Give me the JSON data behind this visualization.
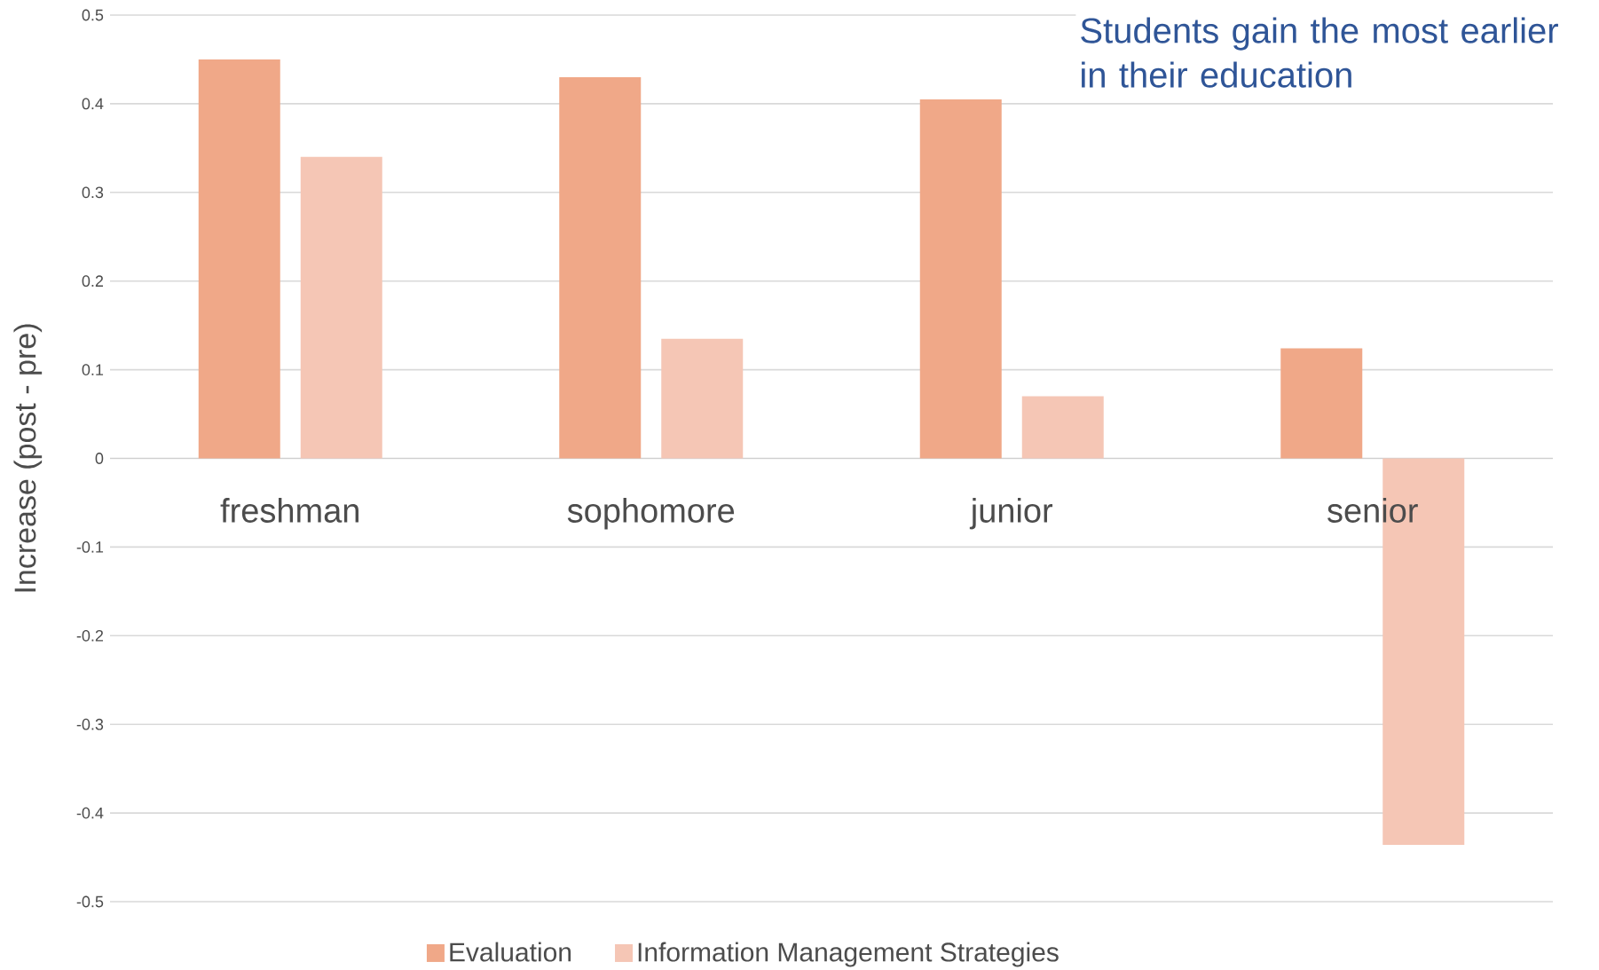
{
  "chart_data": {
    "type": "bar",
    "title": "Students gain the most earlier in their education",
    "ylabel": "Increase (post - pre)",
    "categories": [
      "freshman",
      "sophomore",
      "junior",
      "senior"
    ],
    "series": [
      {
        "name": "Evaluation",
        "color": "#f0a888",
        "values": [
          0.45,
          0.43,
          0.405,
          0.124
        ]
      },
      {
        "name": "Information Management Strategies",
        "color": "#f5c6b5",
        "values": [
          0.34,
          0.135,
          0.07,
          -0.436
        ]
      }
    ],
    "ylim": [
      -0.5,
      0.5
    ],
    "yticks": [
      -0.5,
      -0.4,
      -0.3,
      -0.2,
      -0.1,
      0,
      0.1,
      0.2,
      0.3,
      0.4,
      0.5
    ],
    "grid": "y",
    "legend": "bottom"
  }
}
